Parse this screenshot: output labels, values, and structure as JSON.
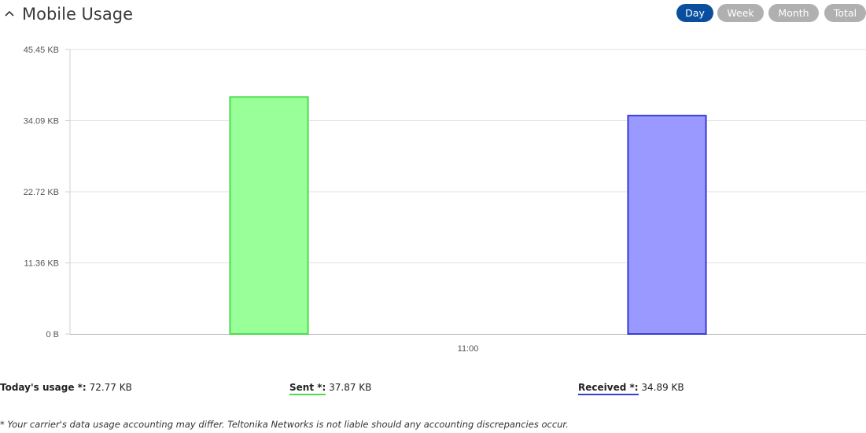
{
  "header": {
    "title": "Mobile Usage",
    "collapse_icon": "chevron-up-icon"
  },
  "period_buttons": [
    {
      "label": "Day",
      "active": true
    },
    {
      "label": "Week",
      "active": false
    },
    {
      "label": "Month",
      "active": false
    },
    {
      "label": "Total",
      "active": false
    }
  ],
  "colors": {
    "active_button": "#0a4f9e",
    "inactive_button": "#b0b0b0",
    "sent_fill": "#99ff99",
    "sent_stroke": "#4ddc4d",
    "received_fill": "#9999ff",
    "received_stroke": "#3b3bd6",
    "grid": "#e2e2e2"
  },
  "chart_data": {
    "type": "bar",
    "categories": [
      "11:00"
    ],
    "series": [
      {
        "name": "Sent",
        "values": [
          37.87
        ]
      },
      {
        "name": "Received",
        "values": [
          34.89
        ]
      }
    ],
    "y_ticks": [
      "0 B",
      "11.36 KB",
      "22.72 KB",
      "34.09 KB",
      "45.45 KB"
    ],
    "y_tick_values": [
      0,
      11.36,
      22.72,
      34.09,
      45.45
    ],
    "ylim": [
      0,
      45.45
    ],
    "y_unit": "KB",
    "grid": true,
    "legend": "none"
  },
  "summary": {
    "today": {
      "label": "Today's usage *:",
      "value": "72.77 KB"
    },
    "sent": {
      "label": "Sent *:",
      "value": "37.87 KB"
    },
    "received": {
      "label": "Received *:",
      "value": "34.89 KB"
    }
  },
  "note": "* Your carrier's data usage accounting may differ. Teltonika Networks is not liable should any accounting discrepancies occur."
}
